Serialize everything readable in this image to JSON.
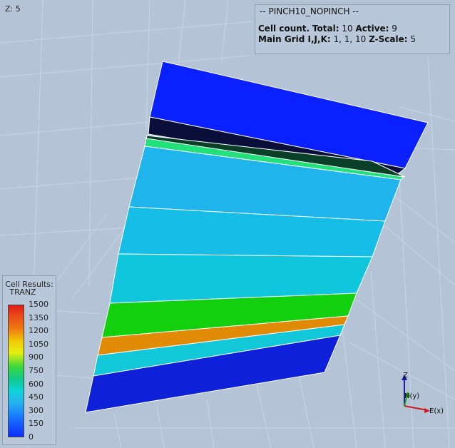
{
  "viewer": {
    "z_label": "Z: 5"
  },
  "info_box": {
    "title": "-- PINCH10_NOPINCH --",
    "cell_count_label": "Cell count.",
    "total_label": "Total:",
    "total_value": "10",
    "active_label": "Active:",
    "active_value": "9",
    "main_grid_label": "Main Grid I,J,K:",
    "main_grid_value": "1, 1, 10",
    "zscale_label": "Z-Scale:",
    "zscale_value": "5"
  },
  "legend": {
    "title": "Cell Results:",
    "result": "TRANZ",
    "ticks": [
      "1500",
      "1350",
      "1200",
      "1050",
      "900",
      "750",
      "600",
      "450",
      "300",
      "150",
      "0"
    ]
  },
  "axes": {
    "z": "Z",
    "n": "N(y)",
    "e": "E(x)"
  },
  "colors": {
    "background": "#b4c3d6",
    "top_cell": "#0b20ff",
    "layer_cyan": "#1cbaf0",
    "layer_green": "#10d01a",
    "layer_orange": "#de8a08",
    "bottom_cell": "#0e20d8"
  }
}
